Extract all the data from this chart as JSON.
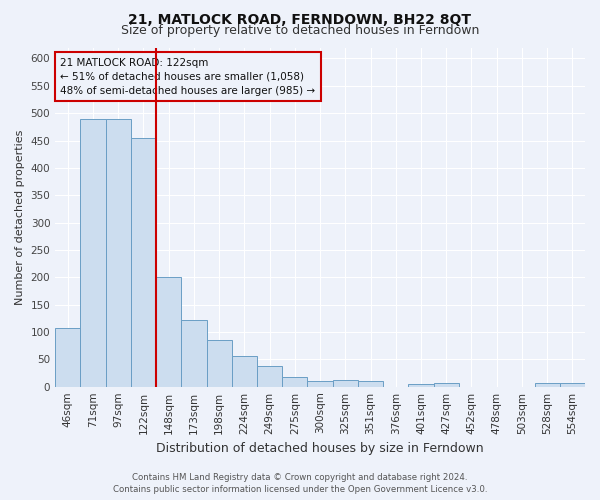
{
  "title": "21, MATLOCK ROAD, FERNDOWN, BH22 8QT",
  "subtitle": "Size of property relative to detached houses in Ferndown",
  "xlabel": "Distribution of detached houses by size in Ferndown",
  "ylabel": "Number of detached properties",
  "footer_line1": "Contains HM Land Registry data © Crown copyright and database right 2024.",
  "footer_line2": "Contains public sector information licensed under the Open Government Licence v3.0.",
  "categories": [
    "46sqm",
    "71sqm",
    "97sqm",
    "122sqm",
    "148sqm",
    "173sqm",
    "198sqm",
    "224sqm",
    "249sqm",
    "275sqm",
    "300sqm",
    "325sqm",
    "351sqm",
    "376sqm",
    "401sqm",
    "427sqm",
    "452sqm",
    "478sqm",
    "503sqm",
    "528sqm",
    "554sqm"
  ],
  "values": [
    107,
    490,
    490,
    455,
    200,
    122,
    85,
    56,
    38,
    17,
    10,
    12,
    10,
    0,
    5,
    6,
    0,
    0,
    0,
    7,
    6
  ],
  "bar_color": "#ccddef",
  "bar_edge_color": "#6a9ec5",
  "red_line_x": 3.5,
  "property_line_label": "21 MATLOCK ROAD: 122sqm",
  "annotation_line2": "← 51% of detached houses are smaller (1,058)",
  "annotation_line3": "48% of semi-detached houses are larger (985) →",
  "annotation_box_edge": "#cc0000",
  "ylim": [
    0,
    620
  ],
  "yticks": [
    0,
    50,
    100,
    150,
    200,
    250,
    300,
    350,
    400,
    450,
    500,
    550,
    600
  ],
  "background_color": "#eef2fa",
  "grid_color": "#ffffff",
  "title_fontsize": 10,
  "subtitle_fontsize": 9,
  "xlabel_fontsize": 9,
  "ylabel_fontsize": 8,
  "tick_fontsize": 7.5,
  "annotation_fontsize": 7.5,
  "footer_fontsize": 6.2
}
